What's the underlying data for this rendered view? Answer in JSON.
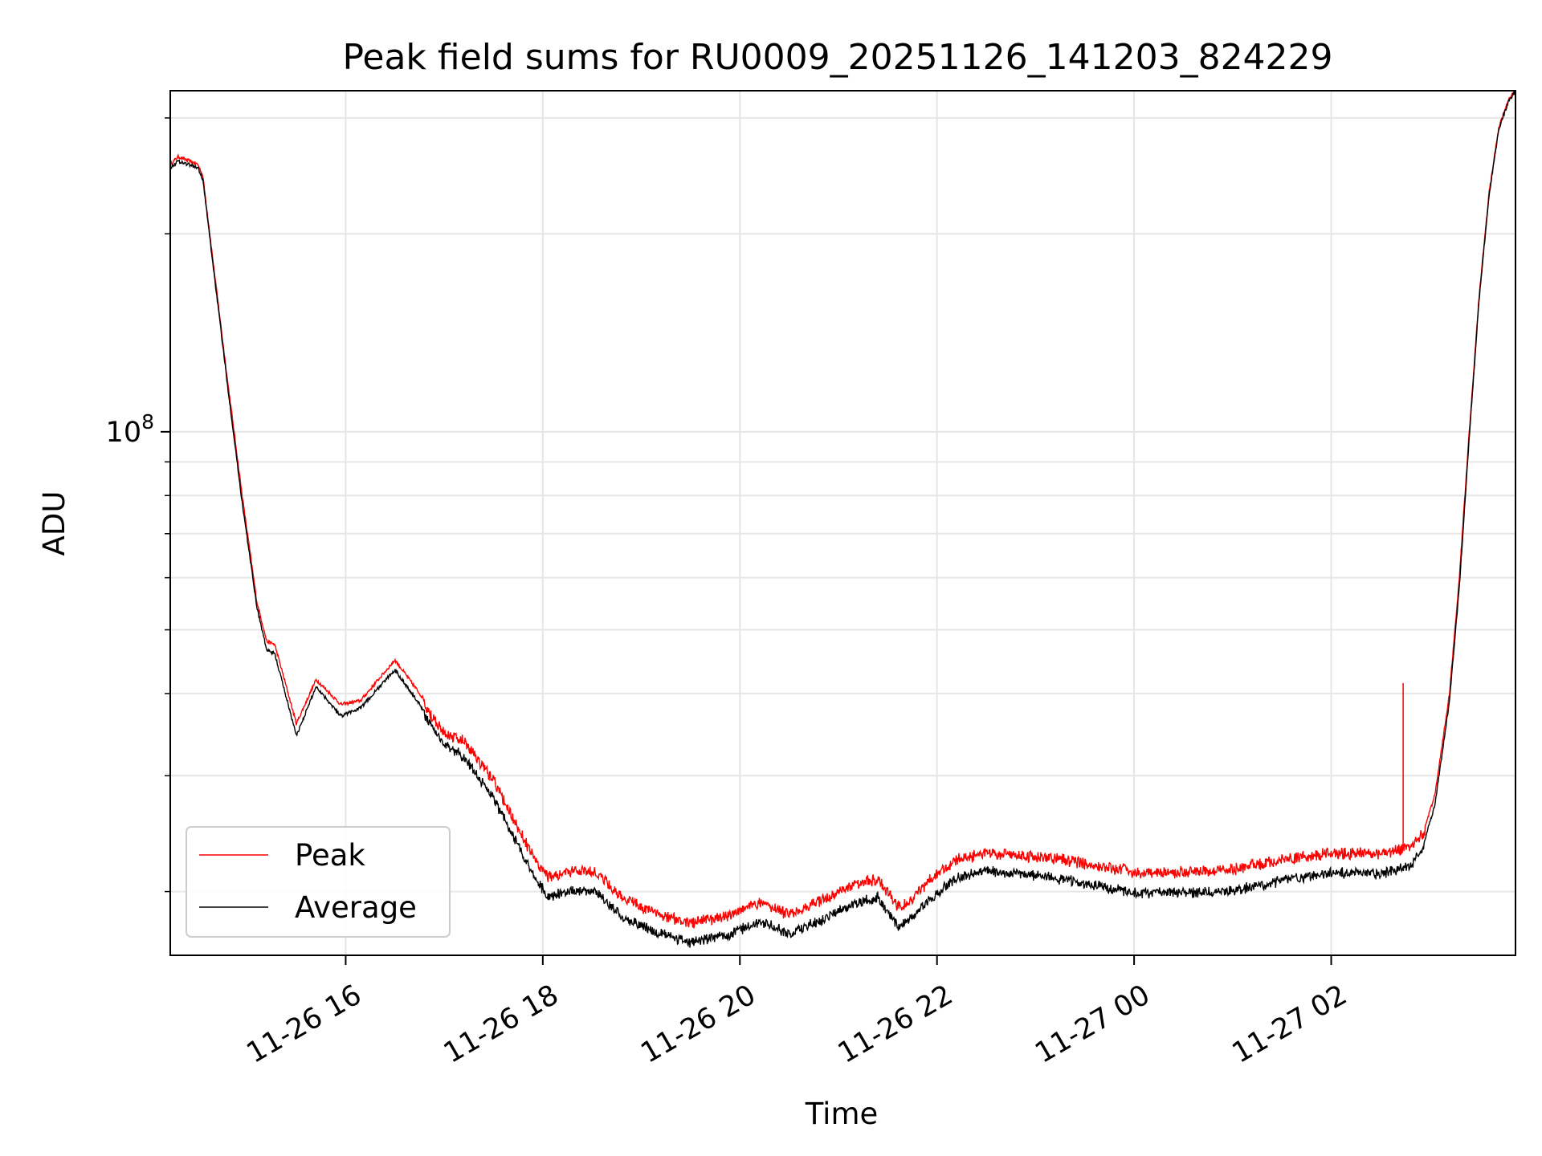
{
  "chart_data": {
    "type": "line",
    "title": "Peak field sums for RU0009_20251126_141203_824229",
    "xlabel": "Time",
    "ylabel": "ADU",
    "y_scale": "log",
    "ylim": [
      16000000,
      330000000
    ],
    "y_tick_major": {
      "value": 100000000,
      "base": "10",
      "exp": "8"
    },
    "y_minor_ticks": [
      20000000,
      30000000,
      40000000,
      50000000,
      60000000,
      70000000,
      80000000,
      90000000,
      200000000,
      300000000
    ],
    "x_unit": "hours since 11-26 00:00",
    "xlim": [
      14.22,
      27.87
    ],
    "x_ticks": [
      {
        "value": 16,
        "label": "11-26 16"
      },
      {
        "value": 18,
        "label": "11-26 18"
      },
      {
        "value": 20,
        "label": "11-26 20"
      },
      {
        "value": 22,
        "label": "11-26 22"
      },
      {
        "value": 24,
        "label": "11-27 00"
      },
      {
        "value": 26,
        "label": "11-27 02"
      }
    ],
    "grid": true,
    "legend_position": "lower-left",
    "series": [
      {
        "name": "Peak",
        "color": "#ff0000",
        "noise": 0.14,
        "spike": {
          "x": 26.73,
          "y": 41500000
        },
        "x": [
          14.22,
          14.3,
          14.5,
          14.55,
          14.8,
          14.95,
          15.1,
          15.2,
          15.28,
          15.5,
          15.7,
          15.95,
          16.15,
          16.5,
          16.75,
          17.0,
          17.2,
          17.5,
          17.9,
          18.05,
          18.5,
          18.8,
          19.1,
          19.5,
          19.9,
          20.2,
          20.5,
          20.9,
          21.2,
          21.4,
          21.6,
          21.7,
          21.9,
          22.2,
          22.5,
          23.0,
          23.5,
          24.0,
          24.5,
          25.0,
          25.5,
          26.0,
          26.5,
          26.8,
          26.95,
          27.05,
          27.12,
          27.2,
          27.3,
          27.4,
          27.5,
          27.6,
          27.7,
          27.8,
          27.87
        ],
        "y": [
          255000000,
          262000000,
          255000000,
          245000000,
          120000000,
          80000000,
          55000000,
          48000000,
          47500000,
          36000000,
          42000000,
          38500000,
          39000000,
          45000000,
          40000000,
          35500000,
          34500000,
          30000000,
          23000000,
          21500000,
          22000000,
          20000000,
          19000000,
          18200000,
          18800000,
          19600000,
          18800000,
          20000000,
          21000000,
          21300000,
          19300000,
          19500000,
          21000000,
          22800000,
          23300000,
          23000000,
          22500000,
          21800000,
          21800000,
          22000000,
          22700000,
          23300000,
          23200000,
          23800000,
          25000000,
          28000000,
          33000000,
          40000000,
          60000000,
          100000000,
          160000000,
          230000000,
          290000000,
          320000000,
          330000000
        ]
      },
      {
        "name": "Average",
        "color": "#000000",
        "noise": 0.0,
        "x": [
          14.22,
          14.3,
          14.5,
          14.55,
          14.8,
          14.95,
          15.1,
          15.2,
          15.28,
          15.5,
          15.7,
          15.95,
          16.15,
          16.5,
          16.75,
          17.0,
          17.2,
          17.5,
          17.9,
          18.05,
          18.5,
          18.8,
          19.1,
          19.5,
          19.9,
          20.2,
          20.5,
          20.9,
          21.2,
          21.4,
          21.6,
          21.7,
          21.9,
          22.2,
          22.5,
          23.0,
          23.5,
          24.0,
          24.5,
          25.0,
          25.5,
          26.0,
          26.5,
          26.8,
          26.95,
          27.05,
          27.12,
          27.2,
          27.3,
          27.4,
          27.5,
          27.6,
          27.7,
          27.8,
          27.87
        ],
        "y": [
          252000000,
          258000000,
          252000000,
          242000000,
          118000000,
          78000000,
          54000000,
          46500000,
          46000000,
          34500000,
          41000000,
          37000000,
          38000000,
          43500000,
          38500000,
          34000000,
          32500000,
          28200000,
          21500000,
          20000000,
          20500000,
          18600000,
          17700000,
          17000000,
          17500000,
          18300000,
          17500000,
          18600000,
          19600000,
          19900000,
          18000000,
          18200000,
          19600000,
          21300000,
          21800000,
          21500000,
          20900000,
          20200000,
          20200000,
          20400000,
          21100000,
          21700000,
          21600000,
          22200000,
          24000000,
          27000000,
          32000000,
          39000000,
          58000000,
          98000000,
          158000000,
          228000000,
          288000000,
          318000000,
          330000000
        ]
      }
    ]
  }
}
